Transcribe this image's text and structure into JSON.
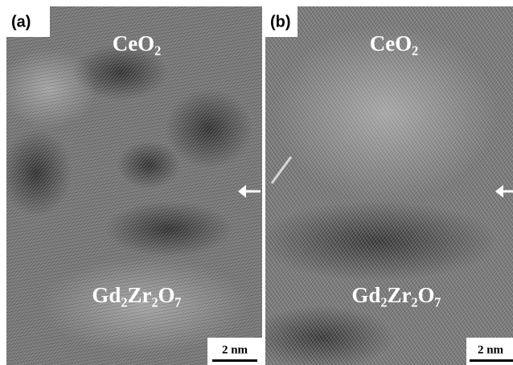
{
  "panels": [
    {
      "label": "(a)",
      "top_label": "CeO₂",
      "bottom_label": "Gd₂Zr₂O₇",
      "scale_bar": "2 nm"
    },
    {
      "label": "(b)",
      "top_label": "CeO₂",
      "bottom_label": "Gd₂Zr₂O₇",
      "scale_bar": "2 nm"
    }
  ]
}
